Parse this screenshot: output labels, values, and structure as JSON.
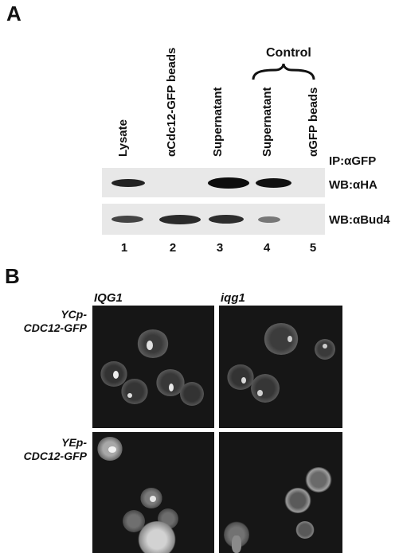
{
  "panel_a": {
    "letter": "A",
    "lanes": [
      "Lysate",
      "αCdc12-GFP beads",
      "Supernatant",
      "Supernatant",
      "αGFP beads"
    ],
    "control_label": "Control",
    "ip_label": "IP:αGFP",
    "blot_labels": [
      "WB:αHA",
      "WB:αBud4"
    ],
    "lane_numbers": [
      "1",
      "2",
      "3",
      "4",
      "5"
    ]
  },
  "panel_b": {
    "letter": "B",
    "columns": [
      "IQG1",
      "iqg1"
    ],
    "rows": [
      {
        "line1": "YCp-",
        "line2": "CDC12-GFP"
      },
      {
        "line1": "YEp-",
        "line2": "CDC12-GFP"
      }
    ]
  }
}
